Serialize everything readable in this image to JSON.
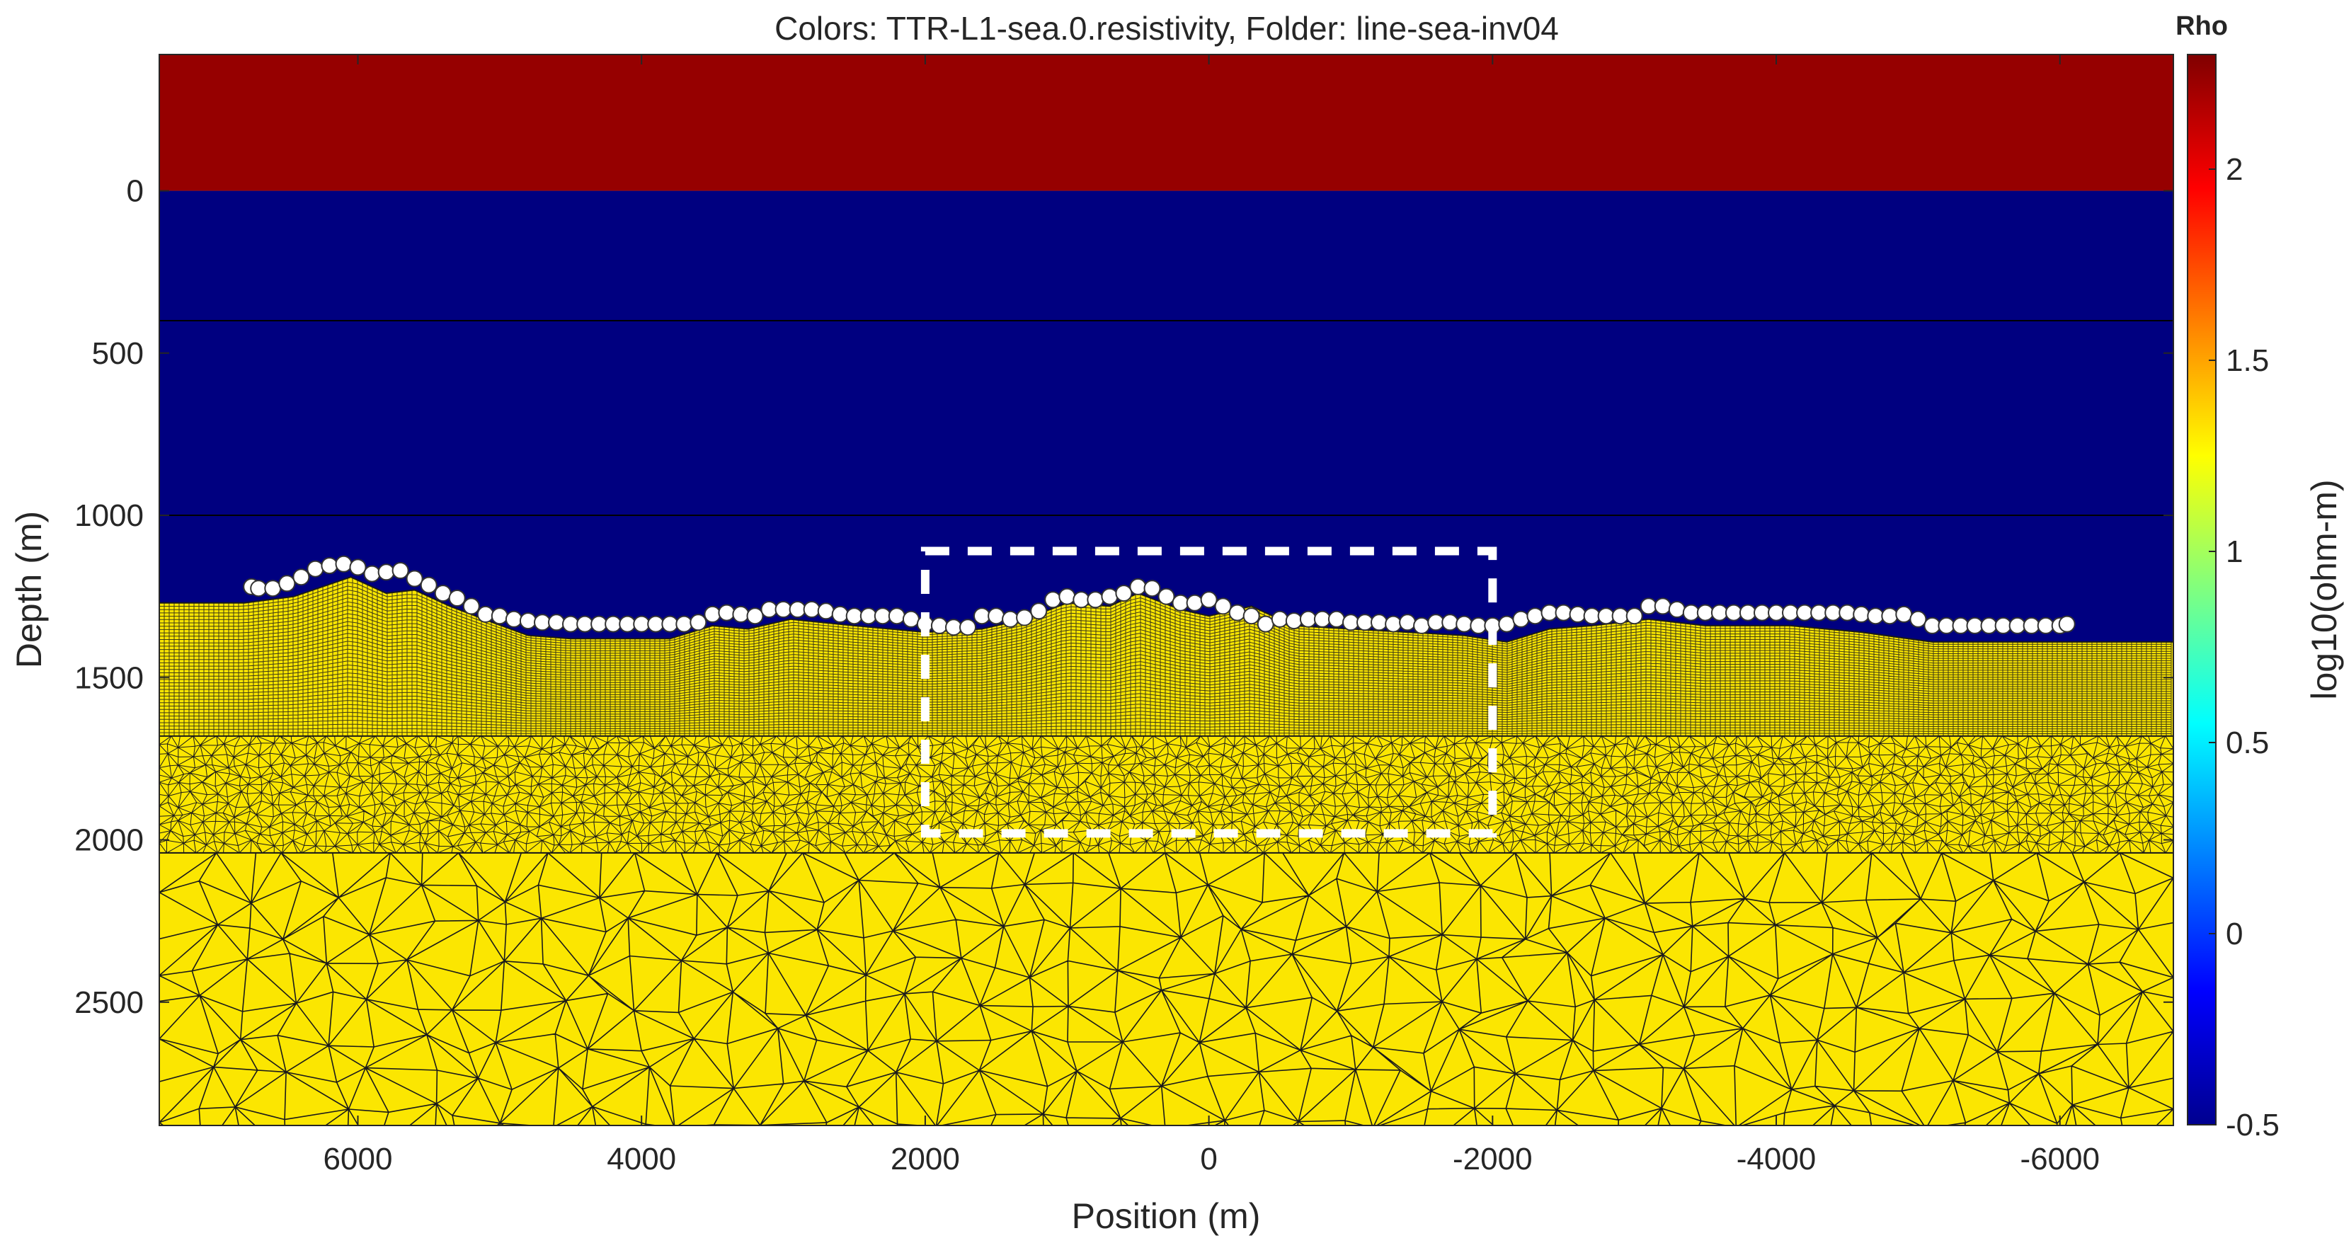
{
  "chart_data": {
    "type": "heatmap",
    "title": "Colors: TTR-L1-sea.0.resistivity, Folder: line-sea-inv04",
    "xlabel": "Position (m)",
    "ylabel": "Depth (m)",
    "xlim": [
      7400,
      -6800
    ],
    "ylim": [
      -420,
      2880
    ],
    "x_reversed": true,
    "y_reversed": true,
    "xticks": [
      6000,
      4000,
      2000,
      0,
      -2000,
      -4000,
      -6000
    ],
    "xtick_labels": [
      "6000",
      "4000",
      "2000",
      "0",
      "-2000",
      "-4000",
      "-6000"
    ],
    "yticks": [
      0,
      500,
      1000,
      1500,
      2000,
      2500
    ],
    "ytick_labels": [
      "0",
      "500",
      "1000",
      "1500",
      "2000",
      "2500"
    ],
    "layers": [
      {
        "name": "air",
        "top": -420,
        "bottom": 0,
        "log10_rho": 2.3,
        "color": "#960000"
      },
      {
        "name": "sea",
        "top": 0,
        "bottom": 1380,
        "log10_rho": -0.5,
        "color": "#000080"
      },
      {
        "name": "seafloor",
        "top": 1280,
        "bottom": 2880,
        "log10_rho": 1.35,
        "color": "#fbe601"
      }
    ],
    "horizontal_lines_depth": [
      400,
      1000
    ],
    "seafloor_profile": {
      "x": [
        7400,
        6800,
        6450,
        6050,
        5800,
        5600,
        5350,
        5050,
        4800,
        4500,
        3800,
        3500,
        3250,
        2950,
        2500,
        2000,
        1600,
        1300,
        1000,
        700,
        500,
        200,
        0,
        -300,
        -600,
        -1000,
        -1400,
        -1800,
        -2100,
        -2400,
        -2700,
        -3100,
        -3500,
        -4100,
        -4600,
        -5100,
        -5500,
        -6000,
        -6800
      ],
      "depth": [
        1270,
        1270,
        1250,
        1190,
        1240,
        1230,
        1280,
        1330,
        1370,
        1380,
        1380,
        1340,
        1350,
        1320,
        1340,
        1360,
        1350,
        1320,
        1270,
        1280,
        1240,
        1290,
        1310,
        1280,
        1340,
        1350,
        1360,
        1370,
        1390,
        1350,
        1340,
        1320,
        1340,
        1340,
        1360,
        1390,
        1390,
        1390,
        1390
      ]
    },
    "mesh_regions_depth": {
      "structured_bottom": 1680,
      "fine_tri_bottom": 2040,
      "coarse_tri_bottom": 2880
    },
    "receivers": {
      "x": [
        6750,
        6700,
        6600,
        6500,
        6400,
        6300,
        6200,
        6100,
        6000,
        5900,
        5800,
        5700,
        5600,
        5500,
        5400,
        5300,
        5200,
        5100,
        5000,
        4900,
        4800,
        4700,
        4600,
        4500,
        4400,
        4300,
        4200,
        4100,
        4000,
        3900,
        3800,
        3700,
        3600,
        3500,
        3400,
        3300,
        3200,
        3100,
        3000,
        2900,
        2800,
        2700,
        2600,
        2500,
        2400,
        2300,
        2200,
        2100,
        2000,
        1900,
        1800,
        1700,
        1600,
        1500,
        1400,
        1300,
        1200,
        1100,
        1000,
        900,
        800,
        700,
        600,
        500,
        400,
        300,
        200,
        100,
        0,
        -100,
        -200,
        -300,
        -400,
        -500,
        -600,
        -700,
        -800,
        -900,
        -1000,
        -1100,
        -1200,
        -1300,
        -1400,
        -1500,
        -1600,
        -1700,
        -1800,
        -1900,
        -2000,
        -2100,
        -2200,
        -2300,
        -2400,
        -2500,
        -2600,
        -2700,
        -2800,
        -2900,
        -3000,
        -3100,
        -3200,
        -3300,
        -3400,
        -3500,
        -3600,
        -3700,
        -3800,
        -3900,
        -4000,
        -4100,
        -4200,
        -4300,
        -4400,
        -4500,
        -4600,
        -4700,
        -4800,
        -4900,
        -5000,
        -5100,
        -5200,
        -5300,
        -5400,
        -5500,
        -5600,
        -5700,
        -5800,
        -5900,
        -6000,
        -6050
      ],
      "depth": [
        1220,
        1225,
        1225,
        1210,
        1190,
        1165,
        1155,
        1150,
        1160,
        1180,
        1175,
        1170,
        1195,
        1215,
        1240,
        1255,
        1280,
        1305,
        1310,
        1320,
        1325,
        1330,
        1330,
        1335,
        1335,
        1335,
        1335,
        1335,
        1335,
        1335,
        1335,
        1335,
        1330,
        1305,
        1300,
        1305,
        1310,
        1290,
        1290,
        1290,
        1290,
        1295,
        1305,
        1310,
        1310,
        1310,
        1310,
        1320,
        1335,
        1340,
        1345,
        1345,
        1310,
        1310,
        1320,
        1315,
        1295,
        1260,
        1250,
        1260,
        1260,
        1250,
        1240,
        1220,
        1225,
        1250,
        1270,
        1270,
        1260,
        1280,
        1300,
        1310,
        1335,
        1320,
        1325,
        1320,
        1320,
        1320,
        1330,
        1330,
        1330,
        1335,
        1330,
        1340,
        1330,
        1330,
        1335,
        1340,
        1340,
        1335,
        1320,
        1310,
        1300,
        1300,
        1305,
        1310,
        1310,
        1310,
        1310,
        1280,
        1280,
        1290,
        1300,
        1300,
        1300,
        1300,
        1300,
        1300,
        1300,
        1300,
        1300,
        1300,
        1300,
        1300,
        1305,
        1310,
        1310,
        1305,
        1320,
        1340,
        1340,
        1340,
        1340,
        1340,
        1340,
        1340,
        1340,
        1340,
        1340,
        1335
      ]
    },
    "highlight_box": {
      "x": [
        2000,
        -2000
      ],
      "depth": [
        1110,
        1980
      ],
      "style": "dashed",
      "color": "#ffffff"
    },
    "colorbar": {
      "title": "Rho",
      "label": "log10(ohm-m)",
      "range": [
        -0.5,
        2.3
      ],
      "ticks": [
        -0.5,
        0,
        0.5,
        1,
        1.5,
        2
      ],
      "tick_labels": [
        "-0.5",
        "0",
        "0.5",
        "1",
        "1.5",
        "2"
      ],
      "colormap": "jet"
    }
  }
}
